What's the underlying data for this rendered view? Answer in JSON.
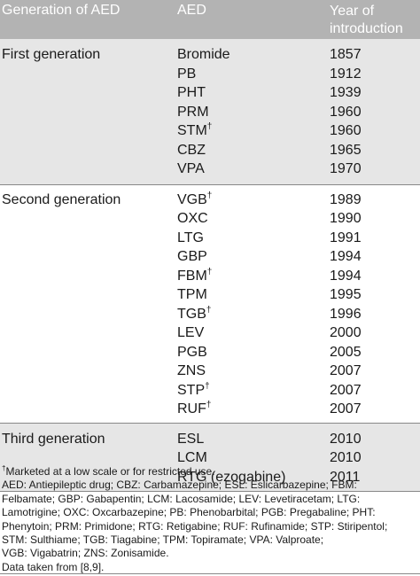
{
  "table": {
    "headers": {
      "generation": "Generation of AED",
      "aed": "AED",
      "year_line1": "Year of",
      "year_line2": "introduction"
    },
    "groups": [
      {
        "label": "First generation",
        "rows": [
          {
            "aed": "Bromide",
            "dagger": "",
            "year": "1857"
          },
          {
            "aed": "PB",
            "dagger": "",
            "year": "1912"
          },
          {
            "aed": "PHT",
            "dagger": "",
            "year": "1939"
          },
          {
            "aed": "PRM",
            "dagger": "",
            "year": "1960"
          },
          {
            "aed": "STM",
            "dagger": "†",
            "year": "1960"
          },
          {
            "aed": "CBZ",
            "dagger": "",
            "year": "1965"
          },
          {
            "aed": "VPA",
            "dagger": "",
            "year": "1970"
          }
        ]
      },
      {
        "label": "Second generation",
        "rows": [
          {
            "aed": "VGB",
            "dagger": "†",
            "year": "1989"
          },
          {
            "aed": "OXC",
            "dagger": "",
            "year": "1990"
          },
          {
            "aed": "LTG",
            "dagger": "",
            "year": "1991"
          },
          {
            "aed": "GBP",
            "dagger": "",
            "year": "1994"
          },
          {
            "aed": "FBM",
            "dagger": "†",
            "year": "1994"
          },
          {
            "aed": "TPM",
            "dagger": "",
            "year": "1995"
          },
          {
            "aed": "TGB",
            "dagger": "†",
            "year": "1996"
          },
          {
            "aed": "LEV",
            "dagger": "",
            "year": "2000"
          },
          {
            "aed": "PGB",
            "dagger": "",
            "year": "2005"
          },
          {
            "aed": "ZNS",
            "dagger": "",
            "year": "2007"
          },
          {
            "aed": "STP",
            "dagger": "†",
            "year": "2007"
          },
          {
            "aed": "RUF",
            "dagger": "†",
            "year": "2007"
          }
        ]
      },
      {
        "label": "Third generation",
        "rows": [
          {
            "aed": "ESL",
            "dagger": "",
            "year": "2010"
          },
          {
            "aed": "LCM",
            "dagger": "",
            "year": "2010"
          },
          {
            "aed": "RTG (ezogabine)",
            "dagger": "",
            "year": "2011"
          }
        ]
      }
    ]
  },
  "footnotes": {
    "dagger_mark": "†",
    "dagger_note": "Marketed at a low scale or for restricted use.",
    "lines": [
      "AED: Antiepileptic drug; CBZ: Carbamazepine; ESL: Eslicarbazepine; FBM:",
      "Felbamate; GBP: Gabapentin; LCM: Lacosamide; LEV: Levetiracetam; LTG:",
      "Lamotrigine; OXC: Oxcarbazepine; PB: Phenobarbital; PGB: Pregabaline; PHT:",
      "Phenytoin; PRM: Primidone; RTG: Retigabine; RUF: Rufinamide; STP: Stiripentol;",
      "STM: Sulthiame; TGB: Tiagabine; TPM: Topiramate; VPA: Valproate;",
      "VGB: Vigabatrin; ZNS: Zonisamide.",
      "Data taken from [8,9]."
    ]
  },
  "colors": {
    "header_bg": "#b3b3b3",
    "shaded_bg": "#e6e6e6",
    "text": "#1a1a1a"
  }
}
